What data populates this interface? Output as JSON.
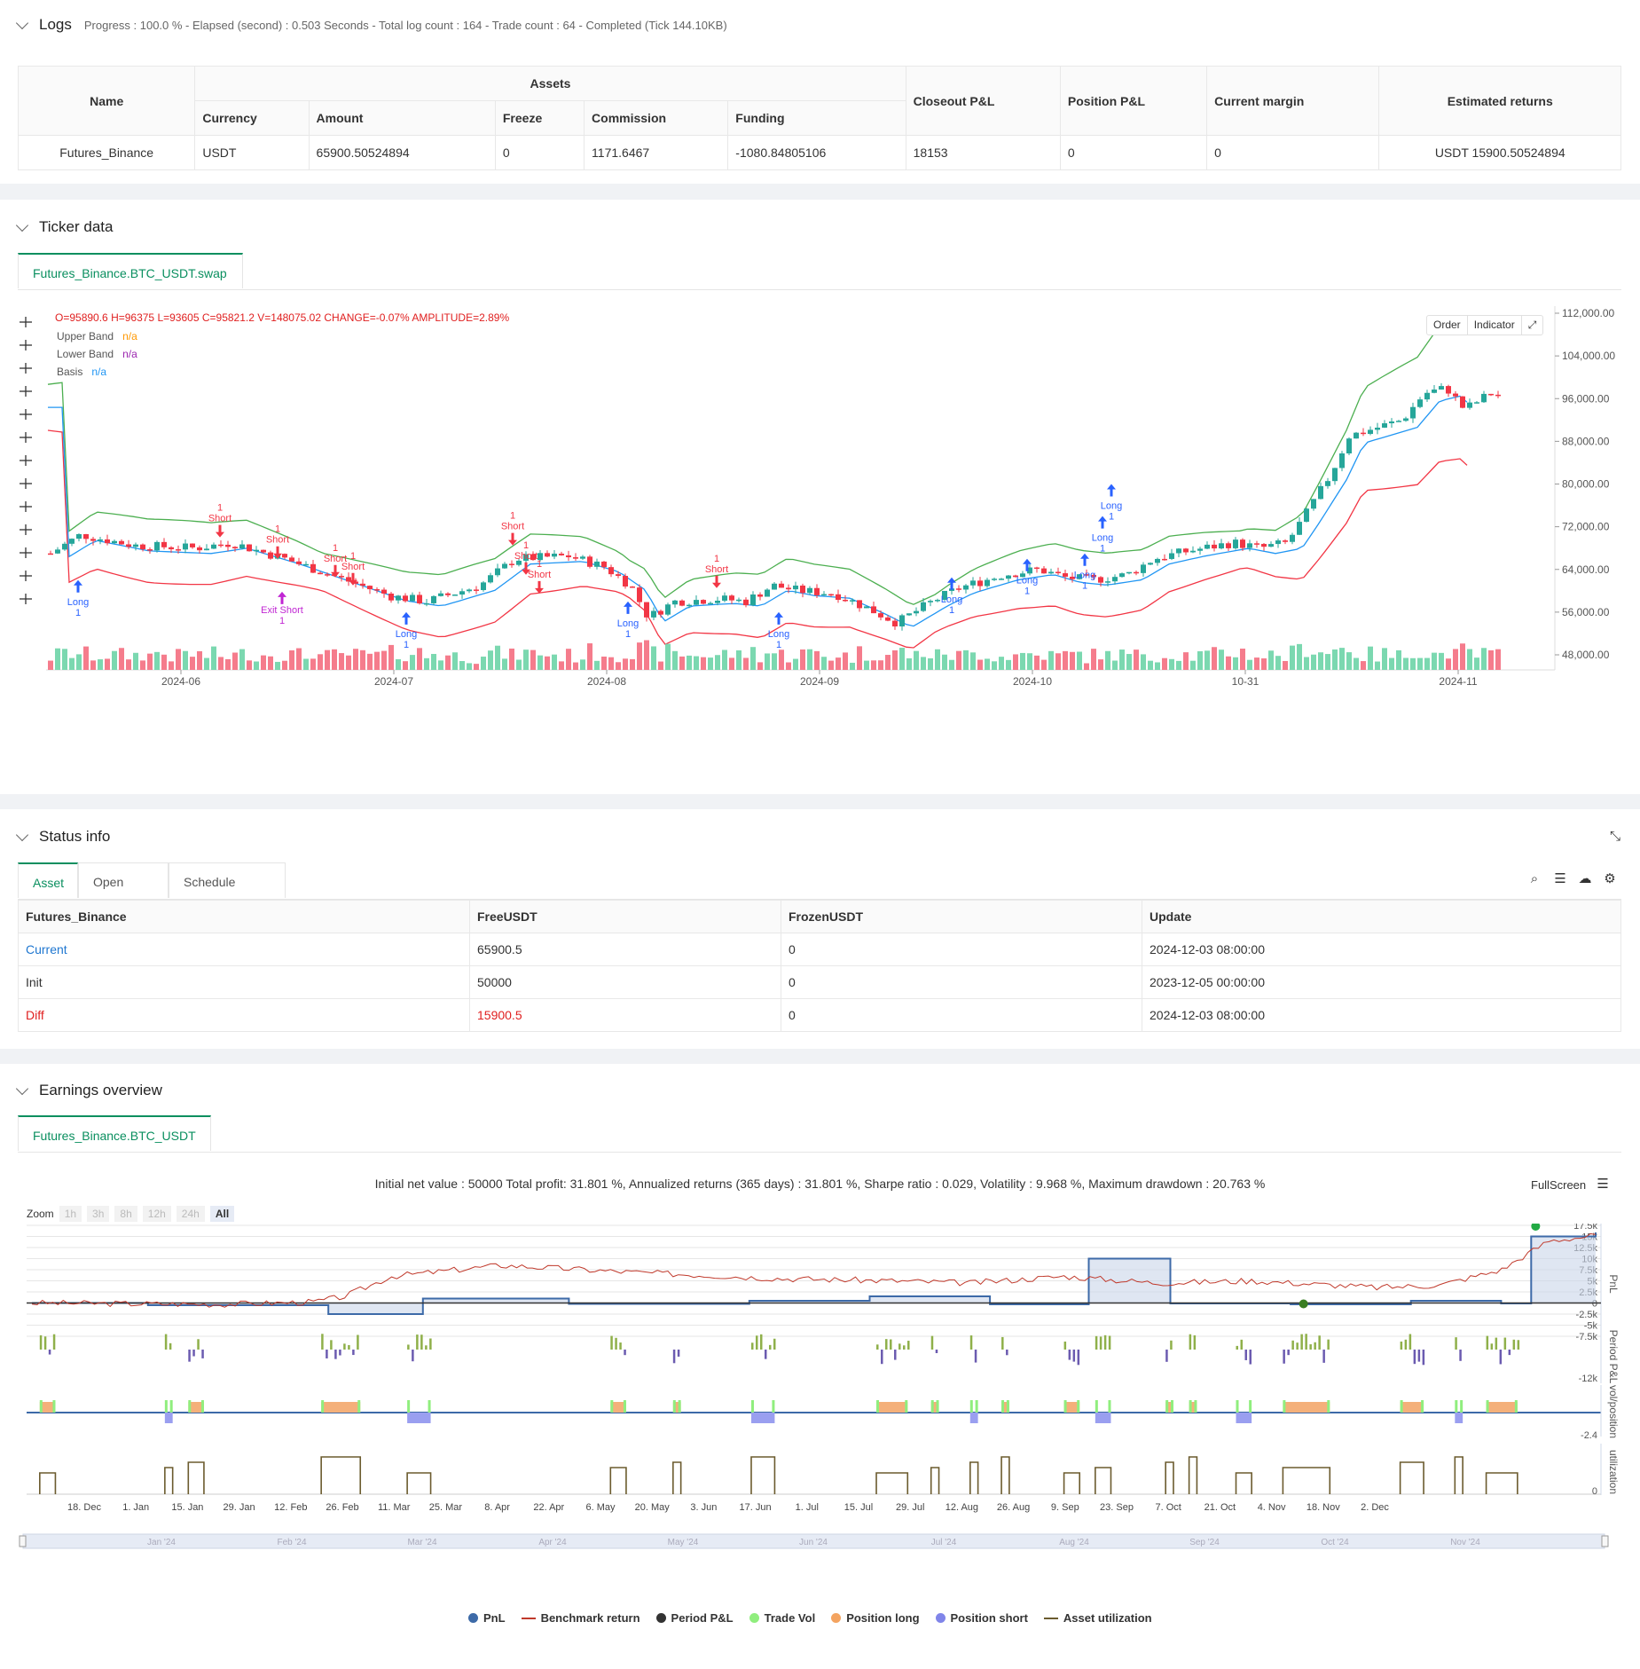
{
  "logs": {
    "title": "Logs",
    "summary": "Progress : 100.0 % - Elapsed (second) : 0.503  Seconds - Total log count : 164 - Trade count : 64 - Completed (Tick 144.10KB)",
    "table": {
      "headers": {
        "name": "Name",
        "assets": "Assets",
        "currency": "Currency",
        "amount": "Amount",
        "freeze": "Freeze",
        "commission": "Commission",
        "funding": "Funding",
        "closeout": "Closeout P&L",
        "position": "Position P&L",
        "margin": "Current margin",
        "estimated": "Estimated returns"
      },
      "row": {
        "name": "Futures_Binance",
        "currency": "USDT",
        "amount": "65900.50524894",
        "freeze": "0",
        "commission": "1171.6467",
        "funding": "-1080.84805106",
        "closeout": "18153",
        "position": "0",
        "margin": "0",
        "estimated": "USDT 15900.50524894"
      }
    }
  },
  "ticker": {
    "title": "Ticker data",
    "tab": "Futures_Binance.BTC_USDT.swap",
    "ohlc": {
      "o": "O=95890.6",
      "h": "H=96375",
      "l": "L=93605",
      "c": "C=95821.2",
      "v": "V=148075.02",
      "change": "CHANGE=-0.07%",
      "amp": "AMPLITUDE=2.89%"
    },
    "legend": [
      {
        "name": "Upper Band",
        "value": "n/a",
        "color": "#ff9800"
      },
      {
        "name": "Lower Band",
        "value": "n/a",
        "color": "#9c27b0"
      },
      {
        "name": "Basis",
        "value": "n/a",
        "color": "#2196f3"
      }
    ],
    "buttons": {
      "order": "Order",
      "indicator": "Indicator"
    },
    "y_ticks": [
      "112,000.00",
      "104,000.00",
      "96,000.00",
      "88,000.00",
      "80,000.00",
      "72,000.00",
      "64,000.00",
      "56,000.00",
      "48,000.00"
    ],
    "x_ticks": [
      "2024-06",
      "2024-07",
      "2024-08",
      "2024-09",
      "2024-10",
      "10-31",
      "2024-11"
    ],
    "signals": {
      "long": "Long",
      "short": "Short",
      "exit_short": "Exit Short",
      "qty": "1"
    },
    "colors": {
      "upper": "#4caf50",
      "lower": "#f23645",
      "basis": "#2196f3",
      "up": "#26a69a",
      "down": "#f23645"
    }
  },
  "status": {
    "title": "Status info",
    "tabs": [
      "Asset",
      "Open orders",
      "Schedule orders"
    ],
    "headers": [
      "Futures_Binance",
      "FreeUSDT",
      "FrozenUSDT",
      "Update"
    ],
    "rows": [
      {
        "label": "Current",
        "free": "65900.5",
        "frozen": "0",
        "update": "2024-12-03 08:00:00"
      },
      {
        "label": "Init",
        "free": "50000",
        "frozen": "0",
        "update": "2023-12-05 00:00:00"
      },
      {
        "label": "Diff",
        "free": "15900.5",
        "frozen": "0",
        "update": "2024-12-03 08:00:00"
      }
    ]
  },
  "earnings": {
    "title": "Earnings overview",
    "tab": "Futures_Binance.BTC_USDT",
    "summary": "Initial net value : 50000  Total profit: 31.801 %, Annualized returns (365 days) : 31.801 %, Sharpe ratio : 0.029, Volatility : 9.968 %, Maximum drawdown : 20.763 %",
    "fullscreen": "FullScreen",
    "zoom_label": "Zoom",
    "zoom": [
      "1h",
      "3h",
      "8h",
      "12h",
      "24h",
      "All"
    ],
    "pnl_ticks": [
      "17.5k",
      "15k",
      "12.5k",
      "10k",
      "7.5k",
      "5k",
      "2.5k",
      "0",
      "-2.5k",
      "-5k",
      "-7.5k"
    ],
    "period_tick": "-12k",
    "vol_tick": "-2.4",
    "util_tick": "0",
    "axis_titles": [
      "PnL",
      "Period P&L",
      "vol/position",
      "utilization"
    ],
    "x_ticks": [
      "18. Dec",
      "1. Jan",
      "15. Jan",
      "29. Jan",
      "12. Feb",
      "26. Feb",
      "11. Mar",
      "25. Mar",
      "8. Apr",
      "22. Apr",
      "6. May",
      "20. May",
      "3. Jun",
      "17. Jun",
      "1. Jul",
      "15. Jul",
      "29. Jul",
      "12. Aug",
      "26. Aug",
      "9. Sep",
      "23. Sep",
      "7. Oct",
      "21. Oct",
      "4. Nov",
      "18. Nov",
      "2. Dec"
    ],
    "nav_ticks": [
      "Jan '24",
      "Feb '24",
      "Mar '24",
      "Apr '24",
      "May '24",
      "Jun '24",
      "Jul '24",
      "Aug '24",
      "Sep '24",
      "Oct '24",
      "Nov '24"
    ],
    "legend": [
      {
        "name": "PnL",
        "color": "#3d6aa8",
        "kind": "dot"
      },
      {
        "name": "Benchmark return",
        "color": "#c0392b",
        "kind": "line"
      },
      {
        "name": "Period P&L",
        "color": "#333333",
        "kind": "dot"
      },
      {
        "name": "Trade Vol",
        "color": "#90ee7e",
        "kind": "dot"
      },
      {
        "name": "Position long",
        "color": "#f4a460",
        "kind": "dot"
      },
      {
        "name": "Position short",
        "color": "#8085e9",
        "kind": "dot"
      },
      {
        "name": "Asset utilization",
        "color": "#6b5b2e",
        "kind": "line"
      }
    ]
  },
  "chart_data": {
    "type": "line",
    "title": "",
    "x": [
      "2023-12-05",
      "2024-01-01",
      "2024-02-12",
      "2024-03-05",
      "2024-04-08",
      "2024-05-20",
      "2024-06-17",
      "2024-07-15",
      "2024-08-07",
      "2024-08-26",
      "2024-09-23",
      "2024-10-21",
      "2024-11-11",
      "2024-11-18",
      "2024-12-03"
    ],
    "series": [
      {
        "name": "PnL",
        "values": [
          0,
          -500,
          -2500,
          1000,
          -200,
          500,
          1500,
          -300,
          10000,
          -100,
          -300,
          500,
          -100,
          15000,
          15900
        ]
      }
    ],
    "ylim": [
      -7500,
      17500
    ]
  }
}
